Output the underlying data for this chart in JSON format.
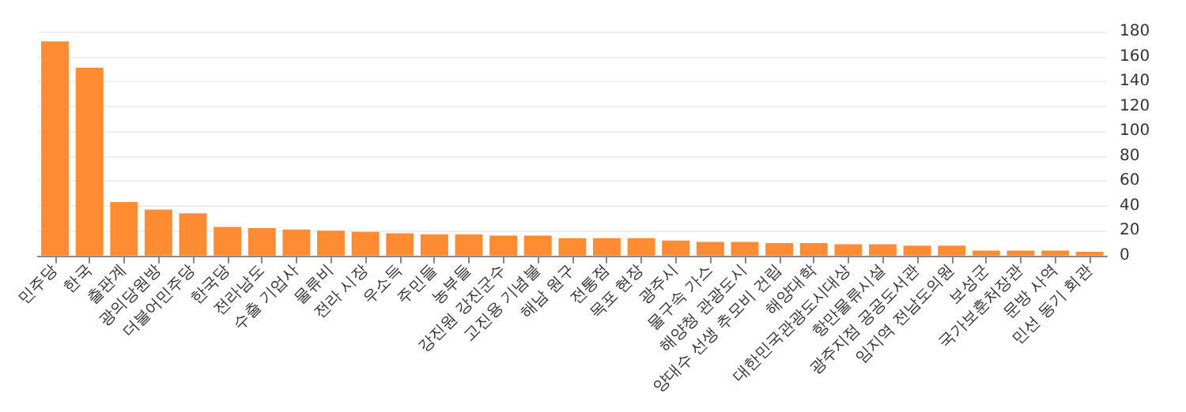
{
  "chart_data": {
    "type": "bar",
    "categories": [
      "민주당",
      "한국",
      "출판계",
      "광의당원방",
      "더불어민주당",
      "한국당",
      "전라남도",
      "수출 기업사",
      "물류비",
      "전라 시장",
      "우소득",
      "주민들",
      "농부들",
      "강진원 강진군수",
      "고진용 기념불",
      "해남 원구",
      "전통점",
      "목포 현장",
      "광주시",
      "물구속 가스",
      "해양청 관광도시",
      "양대수 선생 추모비 건립",
      "해양대학",
      "대한민국관광도시대상",
      "항만물류시설",
      "광주지점 공공도서관",
      "임지역 전남도의원",
      "보성군",
      "국가보훈처장관",
      "문방 사역",
      "민선 동기 회관"
    ],
    "values": [
      172,
      151,
      43,
      37,
      34,
      23,
      22,
      21,
      20,
      19,
      18,
      17,
      17,
      16,
      16,
      14,
      14,
      14,
      12,
      11,
      11,
      10,
      10,
      9,
      9,
      8,
      8,
      4,
      4,
      4,
      3
    ],
    "color": "#ff8c33",
    "ylim": [
      0,
      180
    ],
    "yticks": [
      0,
      20,
      40,
      60,
      80,
      100,
      120,
      140,
      160,
      180
    ],
    "grid": "y"
  }
}
